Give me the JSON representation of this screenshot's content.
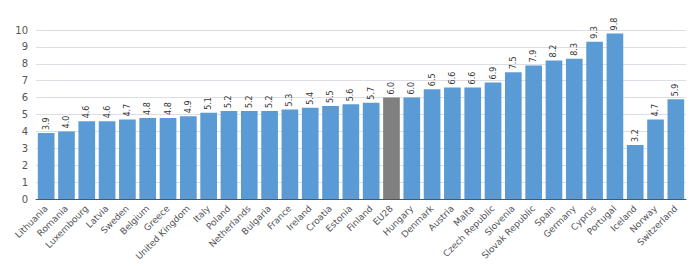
{
  "chart_data": {
    "type": "bar",
    "categories": [
      "Lithuania",
      "Romania",
      "Luxembourg",
      "Latvia",
      "Sweden",
      "Belgium",
      "Greece",
      "United Kingdom",
      "Italy",
      "Poland",
      "Netherlands",
      "Bulgaria",
      "France",
      "Ireland",
      "Croatia",
      "Estonia",
      "Finland",
      "EU28",
      "Hungary",
      "Denmark",
      "Austria",
      "Malta",
      "Czech Republic",
      "Slovenia",
      "Slovak Republic",
      "Spain",
      "Germany",
      "Cyprus",
      "Portugal",
      "Iceland",
      "Norway",
      "Switzerland"
    ],
    "values": [
      3.9,
      4.0,
      4.6,
      4.6,
      4.7,
      4.8,
      4.8,
      4.9,
      5.1,
      5.2,
      5.2,
      5.2,
      5.3,
      5.4,
      5.5,
      5.6,
      5.7,
      6.0,
      6.0,
      6.5,
      6.6,
      6.6,
      6.9,
      7.5,
      7.9,
      8.2,
      8.3,
      9.3,
      9.8,
      3.2,
      4.7,
      5.9
    ],
    "value_labels": [
      "3.9",
      "4.0",
      "4.6",
      "4.6",
      "4.7",
      "4.8",
      "4.8",
      "4.9",
      "5.1",
      "5.2",
      "5.2",
      "5.2",
      "5.3",
      "5.4",
      "5.5",
      "5.6",
      "5.7",
      "6.0",
      "6.0",
      "6.5",
      "6.6",
      "6.6",
      "6.9",
      "7.5",
      "7.9",
      "8.2",
      "8.3",
      "9.3",
      "9.8",
      "3.2",
      "4.7",
      "5.9"
    ],
    "data_labels": true,
    "colors": [
      "#5B9BD5",
      "#5B9BD5",
      "#5B9BD5",
      "#5B9BD5",
      "#5B9BD5",
      "#5B9BD5",
      "#5B9BD5",
      "#5B9BD5",
      "#5B9BD5",
      "#5B9BD5",
      "#5B9BD5",
      "#5B9BD5",
      "#5B9BD5",
      "#5B9BD5",
      "#5B9BD5",
      "#5B9BD5",
      "#5B9BD5",
      "#808080",
      "#5B9BD5",
      "#5B9BD5",
      "#5B9BD5",
      "#5B9BD5",
      "#5B9BD5",
      "#5B9BD5",
      "#5B9BD5",
      "#5B9BD5",
      "#5B9BD5",
      "#5B9BD5",
      "#5B9BD5",
      "#5B9BD5",
      "#5B9BD5",
      "#5B9BD5"
    ],
    "ylim": [
      0,
      10
    ],
    "yticks": [
      0,
      1,
      2,
      3,
      4,
      5,
      6,
      7,
      8,
      9,
      10
    ],
    "grid": true
  }
}
